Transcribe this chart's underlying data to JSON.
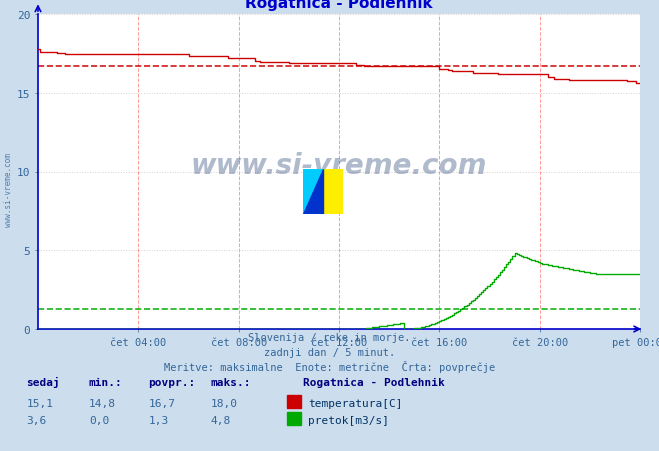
{
  "title": "Rogatnica - Podlehnik",
  "title_color": "#0000cc",
  "bg_color": "#ccdded",
  "plot_bg_color": "#ffffff",
  "xlim": [
    0,
    288
  ],
  "ylim": [
    0,
    20
  ],
  "yticks": [
    0,
    5,
    10,
    15,
    20
  ],
  "xtick_labels": [
    "čet 04:00",
    "čet 08:00",
    "čet 12:00",
    "čet 16:00",
    "čet 20:00",
    "pet 00:00"
  ],
  "xtick_positions": [
    48,
    96,
    144,
    192,
    240,
    288
  ],
  "grid_color_v": "#ff9999",
  "grid_color_h": "#ddcccc",
  "temp_color": "#cc0000",
  "flow_color": "#00aa00",
  "temp_avg_line": 16.7,
  "flow_avg_line": 1.3,
  "footer_line1": "Slovenija / reke in morje.",
  "footer_line2": "zadnji dan / 5 minut.",
  "footer_line3": "Meritve: maksimalne  Enote: metrične  Črta: povprečje",
  "footer_color": "#336699",
  "label_color": "#336699",
  "legend_title": "Rogatnica - Podlehnik",
  "table_header": [
    "sedaj",
    "min.:",
    "povpr.:",
    "maks.:"
  ],
  "table_row1": [
    "15,1",
    "14,8",
    "16,7",
    "18,0"
  ],
  "table_row2": [
    "3,6",
    "0,0",
    "1,3",
    "4,8"
  ],
  "row_labels": [
    "temperatura[C]",
    "pretok[m3/s]"
  ],
  "spine_color": "#0000cc",
  "watermark": "www.si-vreme.com"
}
